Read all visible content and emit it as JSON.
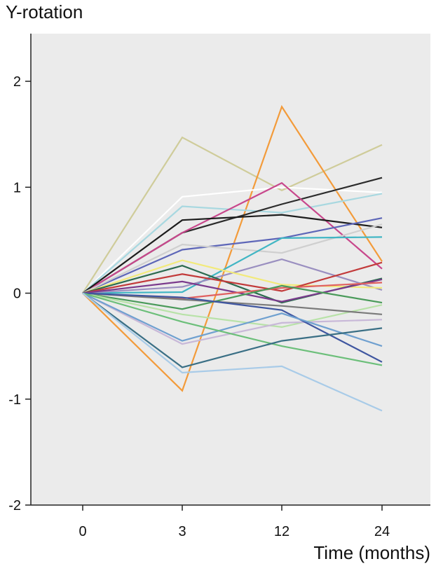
{
  "chart_data": {
    "type": "line",
    "title": "",
    "ylabel": "Y-rotation",
    "xlabel": "Time (months)",
    "categories": [
      "0",
      "3",
      "12",
      "24"
    ],
    "ylim": [
      -2,
      2.45
    ],
    "yticks": [
      -2,
      -1,
      0,
      1,
      2
    ],
    "ytick_labels": [
      "-2",
      "-1",
      "0",
      "1",
      "2"
    ],
    "grid": false,
    "legend": "none",
    "plot_background": "#ebebeb",
    "series": [
      {
        "color": "#cfcc9a",
        "values": [
          0,
          1.47,
          0.97,
          1.4
        ]
      },
      {
        "color": "#f39b3a",
        "values": [
          0,
          -0.92,
          1.76,
          0.3
        ]
      },
      {
        "color": "#ffffff",
        "values": [
          0,
          0.91,
          1.0,
          0.95
        ]
      },
      {
        "color": "#a8d8e0",
        "values": [
          0,
          0.82,
          0.76,
          0.94
        ]
      },
      {
        "color": "#2b2b2b",
        "values": [
          0,
          0.57,
          0.84,
          1.09
        ]
      },
      {
        "color": "#c8478c",
        "values": [
          0,
          0.57,
          1.04,
          0.23
        ]
      },
      {
        "color": "#1c1c1c",
        "values": [
          0,
          0.69,
          0.74,
          0.62
        ]
      },
      {
        "color": "#5d66b8",
        "values": [
          0,
          0.41,
          0.52,
          0.71
        ]
      },
      {
        "color": "#cfcfcf",
        "values": [
          0,
          0.46,
          0.38,
          0.65
        ]
      },
      {
        "color": "#41b6c4",
        "values": [
          0,
          0.01,
          0.52,
          0.53
        ]
      },
      {
        "color": "#9a8fc0",
        "values": [
          0,
          0.06,
          0.32,
          0.03
        ]
      },
      {
        "color": "#f2ea7a",
        "values": [
          0,
          0.31,
          0.08,
          0.05
        ]
      },
      {
        "color": "#2c6b4f",
        "values": [
          0,
          0.26,
          -0.09,
          0.14
        ]
      },
      {
        "color": "#c23a3a",
        "values": [
          0,
          0.18,
          0.02,
          0.29
        ]
      },
      {
        "color": "#7a3a8c",
        "values": [
          0,
          0.11,
          -0.08,
          0.13
        ]
      },
      {
        "color": "#e06060",
        "values": [
          0,
          -0.05,
          0.05,
          0.1
        ]
      },
      {
        "color": "#4a9a5a",
        "values": [
          0,
          -0.15,
          0.07,
          -0.09
        ]
      },
      {
        "color": "#b8e2a8",
        "values": [
          0,
          -0.2,
          -0.32,
          -0.11
        ]
      },
      {
        "color": "#7a7a7a",
        "values": [
          0,
          -0.06,
          -0.12,
          -0.2
        ]
      },
      {
        "color": "#c8b8d8",
        "values": [
          0,
          -0.48,
          -0.28,
          -0.25
        ]
      },
      {
        "color": "#3f56a0",
        "values": [
          0,
          -0.04,
          -0.16,
          -0.65
        ]
      },
      {
        "color": "#6fa0d0",
        "values": [
          0,
          -0.45,
          -0.19,
          -0.5
        ]
      },
      {
        "color": "#6cbf7a",
        "values": [
          0,
          -0.27,
          -0.5,
          -0.68
        ]
      },
      {
        "color": "#3a6f85",
        "values": [
          0,
          -0.7,
          -0.45,
          -0.33
        ]
      },
      {
        "color": "#a8cbe8",
        "values": [
          0,
          -0.75,
          -0.69,
          -1.11
        ]
      }
    ]
  }
}
